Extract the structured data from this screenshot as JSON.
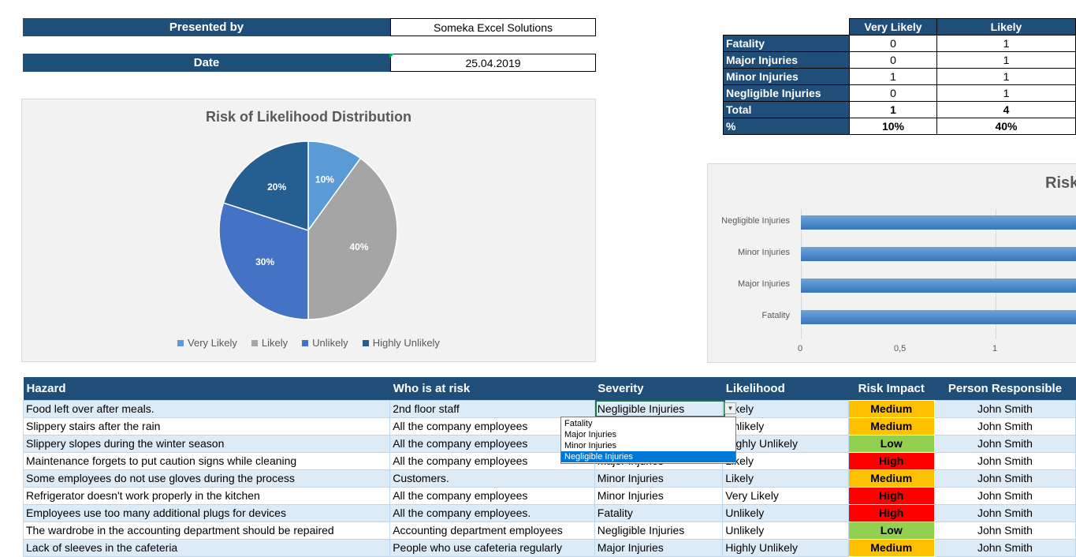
{
  "info": {
    "presented_by_label": "Presented by",
    "presented_by_value": "Someka Excel Solutions",
    "date_label": "Date",
    "date_value": "25.04.2019"
  },
  "pie_chart": {
    "title": "Risk of Likelihood Distribution",
    "slices": [
      {
        "name": "Very Likely",
        "value": 10,
        "label": "10%",
        "color": "#5b9bd5"
      },
      {
        "name": "Likely",
        "value": 40,
        "label": "40%",
        "color": "#a5a5a5"
      },
      {
        "name": "Unlikely",
        "value": 30,
        "label": "30%",
        "color": "#4472c4"
      },
      {
        "name": "Highly Unlikely",
        "value": 20,
        "label": "20%",
        "color": "#255e91"
      }
    ]
  },
  "summary": {
    "columns": [
      "Very Likely",
      "Likely"
    ],
    "rows": [
      {
        "label": "Fatality",
        "values": [
          "0",
          "1"
        ]
      },
      {
        "label": "Major Injuries",
        "values": [
          "0",
          "1"
        ]
      },
      {
        "label": "Minor Injuries",
        "values": [
          "1",
          "1"
        ]
      },
      {
        "label": "Negligible Injuries",
        "values": [
          "0",
          "1"
        ]
      },
      {
        "label": "Total",
        "values": [
          "1",
          "4"
        ]
      },
      {
        "label": "%",
        "values": [
          "10%",
          "40%"
        ]
      }
    ]
  },
  "bar_chart": {
    "title": "Risk",
    "categories": [
      "Negligible Injuries",
      "Minor Injuries",
      "Major Injuries",
      "Fatality"
    ],
    "ticks": [
      "0",
      "0,5",
      "1"
    ],
    "color": "#5b9bd5"
  },
  "chart_data": [
    {
      "type": "pie",
      "title": "Risk of Likelihood Distribution",
      "categories": [
        "Very Likely",
        "Likely",
        "Unlikely",
        "Highly Unlikely"
      ],
      "values": [
        10,
        40,
        30,
        20
      ],
      "legend": "bottom"
    },
    {
      "type": "bar",
      "title": "Risk",
      "categories": [
        "Negligible Injuries",
        "Minor Injuries",
        "Major Injuries",
        "Fatality"
      ],
      "x_ticks": [
        "0",
        "0,5",
        "1"
      ],
      "xlim": [
        0,
        1.5
      ]
    }
  ],
  "main_table": {
    "headers": [
      "Hazard",
      "Who is at risk",
      "Severity",
      "Likelihood",
      "Risk Impact",
      "Person Responsible"
    ],
    "rows": [
      [
        "Food left over after meals.",
        "2nd floor staff",
        "Negligible Injuries",
        "Likely",
        "Medium",
        "John Smith"
      ],
      [
        "Slippery stairs after the rain",
        "All the company employees",
        "",
        "Unlikely",
        "Medium",
        "John Smith"
      ],
      [
        "Slippery slopes during the winter season",
        "All the company employees",
        "",
        "Highly Unlikely",
        "Low",
        "John Smith"
      ],
      [
        "Maintenance forgets to put caution signs while cleaning",
        "All the company employees",
        "Major Injuries",
        "Likely",
        "High",
        "John Smith"
      ],
      [
        "Some employees do not use gloves during the process",
        "Customers.",
        "Minor Injuries",
        "Likely",
        "Medium",
        "John Smith"
      ],
      [
        "Refrigerator doesn't work properly in the kitchen",
        "All the company employees",
        "Minor Injuries",
        "Very Likely",
        "High",
        "John Smith"
      ],
      [
        "Employees use too many additional plugs for  devices",
        "All the company employees.",
        "Fatality",
        "Unlikely",
        "High",
        "John Smith"
      ],
      [
        "The wardrobe in the accounting department should be repaired",
        "Accounting department employees",
        "Negligible Injuries",
        "Unlikely",
        "Low",
        "John Smith"
      ],
      [
        "Lack of sleeves in the cafeteria",
        "People who use cafeteria regularly",
        "Major Injuries",
        "Highly Unlikely",
        "Medium",
        "John Smith"
      ]
    ]
  },
  "dropdown": {
    "options": [
      "Fatality",
      "Major Injuries",
      "Minor Injuries",
      "Negligible Injuries"
    ],
    "selected": "Negligible Injuries",
    "arrow_icon": "dropdown-arrow-icon"
  }
}
